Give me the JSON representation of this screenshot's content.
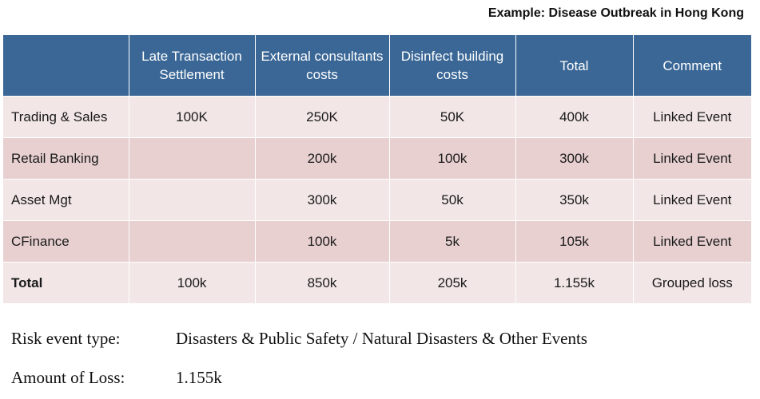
{
  "caption": "Example: Disease Outbreak in Hong Kong",
  "table": {
    "headers": [
      "",
      "Late Transaction Settlement",
      "External consultants costs",
      "Disinfect building costs",
      "Total",
      "Comment"
    ],
    "rows": [
      [
        "Trading & Sales",
        "100K",
        "250K",
        "50K",
        "400k",
        "Linked Event"
      ],
      [
        "Retail Banking",
        "",
        "200k",
        "100k",
        "300k",
        "Linked Event"
      ],
      [
        "Asset Mgt",
        "",
        "300k",
        "50k",
        "350k",
        "Linked Event"
      ],
      [
        "CFinance",
        "",
        "100k",
        "5k",
        "105k",
        "Linked Event"
      ],
      [
        "Total",
        "100k",
        "850k",
        "205k",
        "1.155k",
        "Grouped loss"
      ]
    ]
  },
  "info": {
    "risk_label": "Risk event type:",
    "risk_value": "Disasters & Public Safety / Natural Disasters & Other Events",
    "loss_label": "Amount of Loss:",
    "loss_value": "1.155k"
  }
}
